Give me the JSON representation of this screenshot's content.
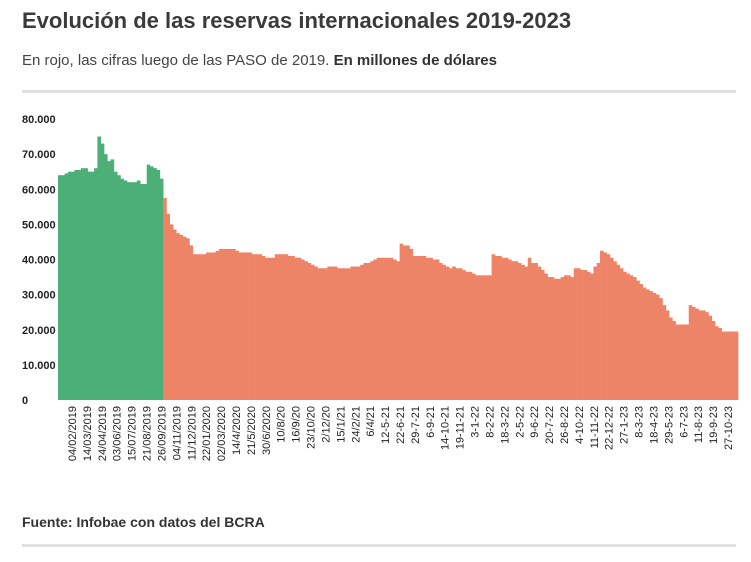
{
  "header": {
    "title": "Evolución de las reservas internacionales 2019-2023",
    "subtitle_plain": "En rojo, las cifras luego de las PASO de 2019. ",
    "subtitle_bold": "En millones de dólares"
  },
  "footer": {
    "source": "Fuente: Infobae con datos del BCRA"
  },
  "colors": {
    "pre_paso": "#4caf78",
    "post_paso": "#ee8467",
    "axis_text": "#222222",
    "rule": "#e1e1e1"
  },
  "chart_data": {
    "type": "bar",
    "ylim": [
      0,
      80000
    ],
    "y_ticks": [
      0,
      10000,
      20000,
      30000,
      40000,
      50000,
      60000,
      70000,
      80000
    ],
    "y_tick_labels": [
      "0",
      "10.000",
      "20.000",
      "30.000",
      "40.000",
      "50.000",
      "60.000",
      "70.000",
      "80.000"
    ],
    "x_tick_labels": [
      "04/02/2019",
      "14/03/2019",
      "24/04/2019",
      "03/06/2019",
      "15/07/2019",
      "21/08/2019",
      "26/09/2019",
      "04/11/2019",
      "11/12/2019",
      "22/01/2020",
      "02/03/2020",
      "14/4/2020",
      "21/5/2020",
      "30/6/2020",
      "10/8/20",
      "16/9/20",
      "23/10/20",
      "2/12/20",
      "15/1/21",
      "24/2/21",
      "6/4/21",
      "12-5-21",
      "22-6-21",
      "29-7-21",
      "6-9-21",
      "14-10-21",
      "19-11-21",
      "3-1-22",
      "8-2-22",
      "18-3-22",
      "2-5-22",
      "9-6-22",
      "20-7-22",
      "26-8-22",
      "4-10-22",
      "11-11-22",
      "22-12-22",
      "27-1-23",
      "8-3-23",
      "18-4-23",
      "29-5-23",
      "6-7-23",
      "11-8-23",
      "19-9-23",
      "27-10-23"
    ],
    "series": [
      {
        "name": "pre_paso",
        "color": "#4caf78",
        "values": [
          64000,
          64000,
          64500,
          65000,
          65000,
          65500,
          65500,
          66000,
          66000,
          65000,
          65000,
          66000,
          75000,
          73000,
          70000,
          68000,
          68500,
          65000,
          64000,
          63000,
          62500,
          62000,
          62000,
          62000,
          62500,
          61500,
          61500,
          67000,
          66500,
          66000,
          65500,
          63000
        ]
      },
      {
        "name": "post_paso",
        "color": "#ee8467",
        "values": [
          57500,
          53000,
          50000,
          48500,
          47500,
          47000,
          46500,
          46000,
          44000,
          41500,
          41500,
          41500,
          41500,
          42000,
          42000,
          42000,
          42500,
          43000,
          43000,
          43000,
          43000,
          43000,
          42500,
          42000,
          42000,
          42000,
          42000,
          41500,
          41500,
          41500,
          41000,
          40500,
          40500,
          40500,
          41500,
          41500,
          41500,
          41500,
          41000,
          41000,
          40500,
          40500,
          40000,
          39500,
          39000,
          38500,
          38000,
          37500,
          37500,
          37500,
          38000,
          38000,
          38000,
          37500,
          37500,
          37500,
          37500,
          38000,
          38000,
          38000,
          38500,
          39000,
          39000,
          39500,
          40000,
          40500,
          40500,
          40500,
          40500,
          40500,
          40000,
          39500,
          44500,
          44000,
          44000,
          43000,
          41000,
          41000,
          41000,
          41000,
          40500,
          40500,
          40000,
          40000,
          39000,
          38500,
          38000,
          37500,
          38000,
          37500,
          37500,
          37000,
          36500,
          36500,
          36000,
          35500,
          35500,
          35500,
          35500,
          35500,
          41500,
          41000,
          41000,
          40500,
          40500,
          40000,
          39500,
          39500,
          39000,
          38500,
          38000,
          40500,
          39000,
          39000,
          38000,
          37000,
          36000,
          35000,
          35000,
          34500,
          34500,
          35000,
          35500,
          35500,
          35000,
          37500,
          37500,
          37000,
          37000,
          36500,
          36000,
          38000,
          39000,
          42500,
          42000,
          41500,
          40500,
          39500,
          38500,
          37500,
          36500,
          36000,
          35500,
          35000,
          34000,
          33000,
          32000,
          31500,
          31000,
          30500,
          30000,
          29000,
          27000,
          25500,
          23500,
          22500,
          21500,
          21500,
          21500,
          21500,
          27000,
          26500,
          26000,
          25500,
          25500,
          25000,
          24000,
          22500,
          21000,
          20500,
          19500,
          19500,
          19500,
          19500,
          19500
        ]
      }
    ]
  }
}
